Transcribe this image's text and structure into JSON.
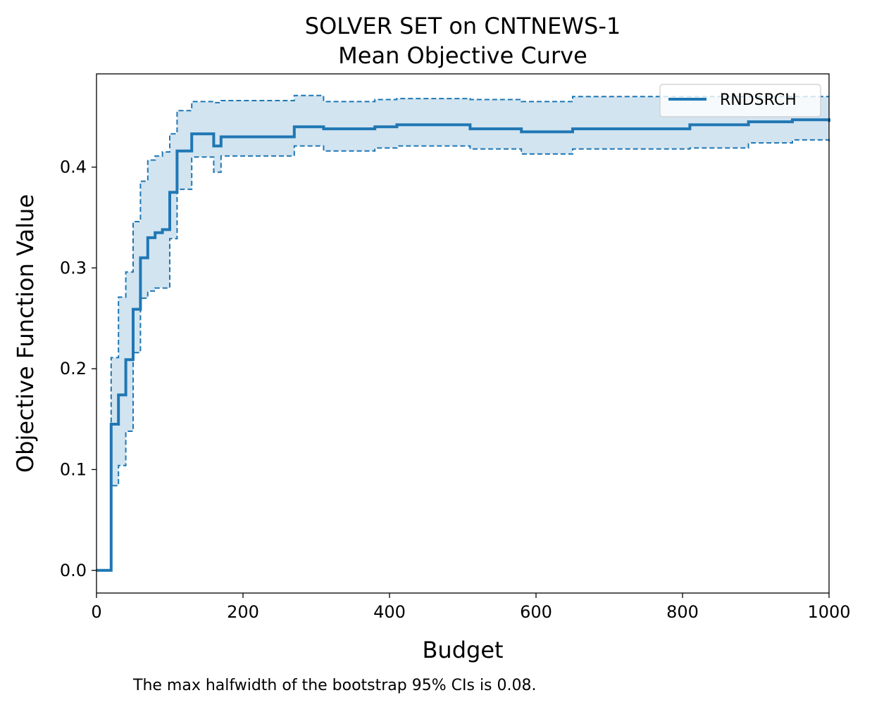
{
  "chart_data": {
    "type": "line",
    "title_line1": "SOLVER SET on CNTNEWS-1",
    "title_line2": "Mean Objective Curve",
    "xlabel": "Budget",
    "ylabel": "Objective Function Value",
    "xlim": [
      0,
      1000
    ],
    "ylim": [
      -0.0225,
      0.4925
    ],
    "xticks": [
      0,
      200,
      400,
      600,
      800,
      1000
    ],
    "xtick_labels": [
      "0",
      "200",
      "400",
      "600",
      "800",
      "1000"
    ],
    "yticks": [
      0.0,
      0.1,
      0.2,
      0.3,
      0.4
    ],
    "ytick_labels": [
      "0.0",
      "0.1",
      "0.2",
      "0.3",
      "0.4"
    ],
    "grid": false,
    "legend_position": "top-right",
    "color": "#1f77b4",
    "series": [
      {
        "name": "RNDSRCH",
        "step": "post",
        "x": [
          0,
          20,
          30,
          40,
          50,
          60,
          70,
          80,
          90,
          100,
          110,
          130,
          160,
          170,
          270,
          310,
          380,
          410,
          510,
          580,
          650,
          810,
          890,
          950,
          1000
        ],
        "mean": [
          0.0,
          0.145,
          0.174,
          0.209,
          0.259,
          0.31,
          0.33,
          0.335,
          0.338,
          0.375,
          0.416,
          0.433,
          0.421,
          0.43,
          0.44,
          0.438,
          0.44,
          0.442,
          0.438,
          0.435,
          0.438,
          0.442,
          0.445,
          0.447,
          0.445
        ],
        "ci_upper": [
          0.0,
          0.211,
          0.271,
          0.296,
          0.346,
          0.386,
          0.407,
          0.411,
          0.415,
          0.433,
          0.456,
          0.465,
          0.464,
          0.466,
          0.471,
          0.465,
          0.467,
          0.468,
          0.467,
          0.465,
          0.47,
          0.47,
          0.47,
          0.47,
          0.47
        ],
        "ci_lower": [
          0.0,
          0.084,
          0.104,
          0.138,
          0.216,
          0.27,
          0.277,
          0.28,
          0.28,
          0.329,
          0.378,
          0.41,
          0.395,
          0.411,
          0.421,
          0.416,
          0.419,
          0.421,
          0.418,
          0.413,
          0.418,
          0.419,
          0.424,
          0.427,
          0.425
        ]
      }
    ]
  },
  "footnote": "The max halfwidth of the bootstrap 95% CIs is 0.08."
}
